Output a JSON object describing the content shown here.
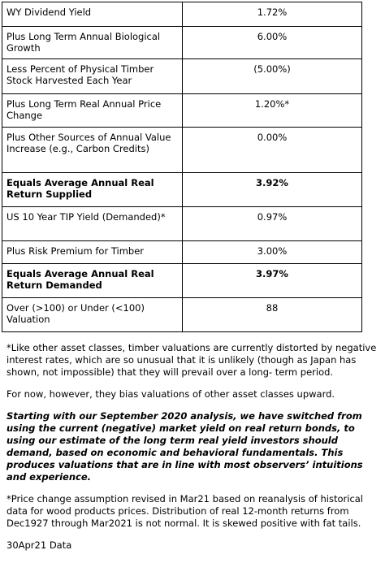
{
  "table": {
    "rows": [
      [
        "WY Dividend Yield",
        "1.72%"
      ],
      [
        "Plus Long Term Annual Biological Growth",
        "6.00%"
      ],
      [
        "Less Percent of Physical Timber Stock Harvested Each Year",
        "(5.00%)"
      ],
      [
        "Plus Long Term Real Annual Price Change",
        "1.20%*"
      ],
      [
        "Plus Other Sources of Annual Value Increase (e.g., Carbon Credits)",
        "0.00%"
      ],
      [
        "Equals Average Annual Real Return Supplied",
        "3.92%"
      ],
      [
        "US 10 Year TIP Yield (Demanded)*",
        "0.97%"
      ],
      [
        "Plus Risk Premium for Timber",
        "3.00%"
      ],
      [
        "Equals Average Annual Real Return Demanded",
        "3.97%"
      ],
      [
        "Over (>100) or Under (<100) Valuation",
        "88"
      ]
    ]
  },
  "notes": [
    "*Like other asset classes, timber valuations are currently distorted by negative interest rates, which are so unusual that it is unlikely (though as Japan has shown, not impossible) that they will prevail over a long- term period.",
    "For now, however, they bias valuations of other asset classes upward.",
    "Starting with our September 2020 analysis, we have switched from using the current (negative) market yield on real return bonds, to using our estimate of the long term real yield investors should demand, based on economic and behavioral fundamentals. This produces valuations that are in line with most observers’ intuitions and experience.",
    "*Price change assumption revised in Mar21 based on reanalysis of historical data for wood products prices. Distribution of real 12-month returns from Dec1927 through Mar2021 is not normal. It is skewed positive with fat tails.",
    "30Apr21 Data"
  ]
}
